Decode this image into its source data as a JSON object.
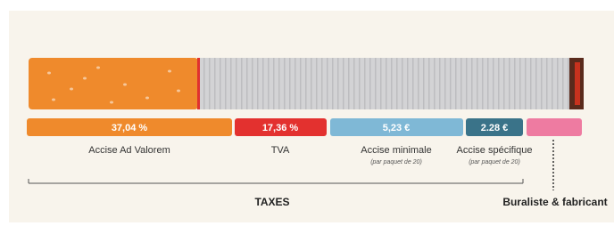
{
  "segments": [
    {
      "value_label": "37,04 %",
      "label": "Accise Ad Valorem"
    },
    {
      "value_label": "17,36 %",
      "label": "TVA"
    },
    {
      "value_label": "5,23 €",
      "label": "Accise minimale",
      "note": "(par paquet de 20)"
    },
    {
      "value_label": "2.28 €",
      "label": "Accise spécifique",
      "note": "(par paquet de 20)"
    }
  ],
  "groups": {
    "taxes": "TAXES",
    "retail": "Buraliste & fabricant"
  }
}
